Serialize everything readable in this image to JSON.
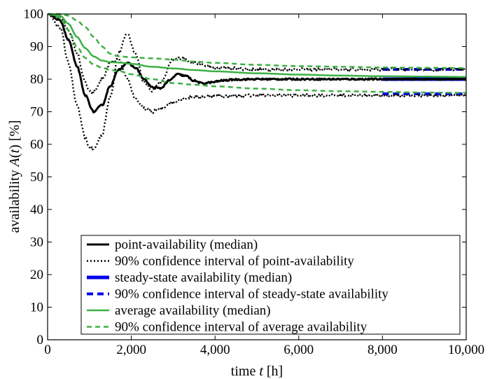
{
  "chart_data": {
    "type": "line",
    "title": "",
    "xlabel": {
      "prefix": "time ",
      "var": "t",
      "suffix": " [h]"
    },
    "ylabel": {
      "prefix": "availability ",
      "var": "A",
      "mid": "(",
      "var2": "t",
      "suffix": ") [%]"
    },
    "xlim": [
      0,
      10000
    ],
    "ylim": [
      0,
      100
    ],
    "x_ticks": [
      0,
      2000,
      4000,
      6000,
      8000,
      10000
    ],
    "x_tick_labels": [
      "0",
      "2,000",
      "4,000",
      "6,000",
      "8,000",
      "10,000"
    ],
    "y_ticks": [
      0,
      10,
      20,
      30,
      40,
      50,
      60,
      70,
      80,
      90,
      100
    ],
    "y_tick_labels": [
      "0",
      "10",
      "20",
      "30",
      "40",
      "50",
      "60",
      "70",
      "80",
      "90",
      "100"
    ],
    "grid": false,
    "legend_position": "bottom-right",
    "series": [
      {
        "name": "point-availability (median)",
        "color": "#000000",
        "style": "solid",
        "width": 3,
        "noise": 0.25,
        "x": [
          0,
          300,
          500,
          700,
          900,
          1100,
          1300,
          1500,
          1700,
          1900,
          2100,
          2300,
          2500,
          2700,
          2900,
          3100,
          3300,
          3500,
          3700,
          3900,
          4200,
          4500,
          5000,
          6000,
          8000,
          10000
        ],
        "y": [
          100,
          98,
          92,
          84,
          75,
          70,
          72,
          78,
          83,
          85,
          83.5,
          80,
          77.5,
          77.2,
          79.5,
          81.5,
          81,
          79.5,
          78.7,
          79,
          79.6,
          79.9,
          80,
          80,
          80,
          80
        ]
      },
      {
        "name": "90% confidence interval of point-availability",
        "color": "#000000",
        "style": "dotted",
        "width": 2.4,
        "noise": 0.45,
        "x": [
          0,
          300,
          500,
          700,
          900,
          1000,
          1100,
          1300,
          1500,
          1700,
          1900,
          2100,
          2300,
          2500,
          2700,
          3000,
          3200,
          3500,
          4000,
          5000,
          6000,
          8000,
          10000
        ],
        "y": [
          100,
          96,
          85,
          72,
          62,
          59,
          58.5,
          63,
          75,
          88,
          94,
          88,
          79,
          76.5,
          79,
          86,
          86.5,
          85,
          83.5,
          83,
          83,
          83,
          83
        ],
        "y_lower": [
          100,
          99,
          95,
          88,
          79,
          76,
          76,
          80,
          85,
          86,
          80,
          74,
          71,
          70,
          71,
          73,
          74,
          74.5,
          74.8,
          75,
          75,
          75,
          75
        ]
      },
      {
        "name": "steady-state availability (median)",
        "color": "#0000ee",
        "style": "solid",
        "width": 5,
        "x": [
          8000,
          10000
        ],
        "y": [
          80,
          80
        ]
      },
      {
        "name": "90% confidence interval of steady-state availability",
        "color": "#0000ee",
        "style": "dashed",
        "width": 4,
        "x": [
          8000,
          10000
        ],
        "y": [
          83,
          83
        ],
        "y_lower": [
          75.5,
          75.5
        ]
      },
      {
        "name": "average availability (median)",
        "color": "#3cb044",
        "style": "solid",
        "width": 2.5,
        "x": [
          0,
          300,
          500,
          700,
          900,
          1100,
          1300,
          1500,
          1700,
          2000,
          2500,
          3000,
          3500,
          4000,
          5000,
          6000,
          7000,
          8000,
          9000,
          10000
        ],
        "y": [
          100,
          99.5,
          97,
          93,
          89.5,
          87,
          85.7,
          85.2,
          85.1,
          84.7,
          83.8,
          83.3,
          82.8,
          82.4,
          81.8,
          81.4,
          81.1,
          80.9,
          80.8,
          80.7
        ]
      },
      {
        "name": "90% confidence interval of average availability",
        "color": "#3cb044",
        "style": "dashed",
        "width": 2.5,
        "x": [
          0,
          300,
          500,
          700,
          900,
          1100,
          1300,
          1500,
          1700,
          2000,
          2500,
          3000,
          3500,
          4000,
          5000,
          6000,
          7000,
          8000,
          9000,
          10000
        ],
        "y": [
          100,
          100,
          99.5,
          98,
          96,
          93,
          90,
          87.8,
          87,
          86.7,
          86.4,
          86,
          85.4,
          85,
          84.4,
          84,
          83.8,
          83.6,
          83.5,
          83.4
        ],
        "y_lower": [
          100,
          99,
          95,
          90,
          86.5,
          84.5,
          83.5,
          82.8,
          82.5,
          81.5,
          80,
          78.8,
          78.3,
          77.8,
          77.1,
          76.6,
          76.3,
          76.1,
          75.9,
          75.8
        ]
      }
    ]
  }
}
